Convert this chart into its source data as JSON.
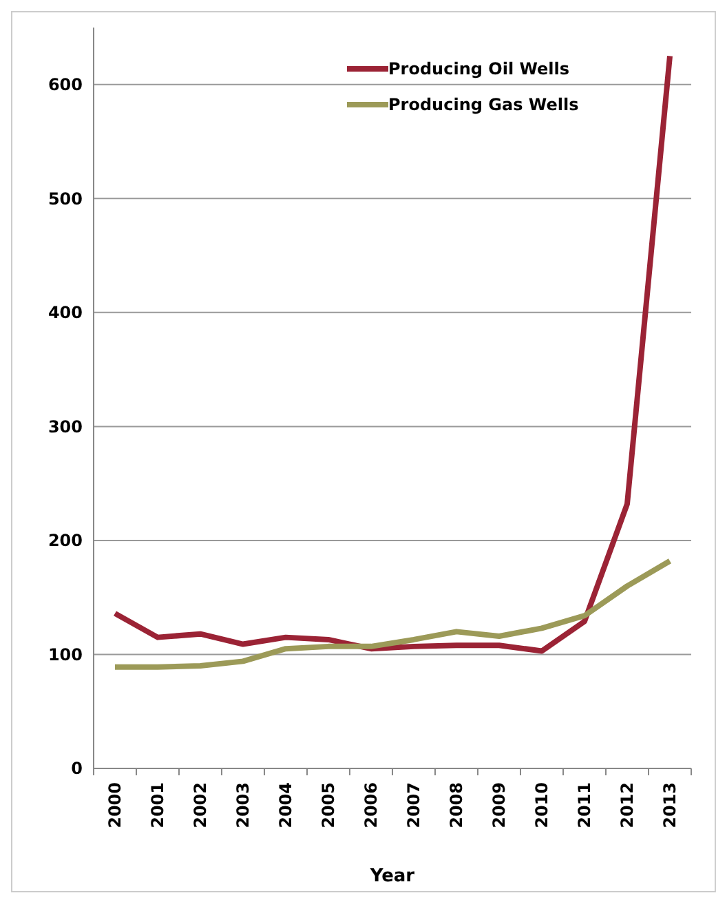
{
  "chart_data": {
    "type": "line",
    "xlabel": "Year",
    "categories": [
      "2000",
      "2001",
      "2002",
      "2003",
      "2004",
      "2005",
      "2006",
      "2007",
      "2008",
      "2009",
      "2010",
      "2011",
      "2012",
      "2013"
    ],
    "series": [
      {
        "name": "Producing Oil Wells",
        "color": "#9b2335",
        "values": [
          136,
          115,
          118,
          109,
          115,
          113,
          105,
          107,
          108,
          108,
          103,
          129,
          232,
          625
        ]
      },
      {
        "name": "Producing Gas Wells",
        "color": "#9c9a58",
        "values": [
          89,
          89,
          90,
          94,
          105,
          107,
          107,
          113,
          120,
          116,
          123,
          134,
          160,
          182
        ]
      }
    ],
    "ylim": [
      0,
      650
    ],
    "yticks": [
      0,
      100,
      200,
      300,
      400,
      500,
      600
    ],
    "grid": "y",
    "legend": "top right",
    "marker": "none",
    "line_style": "solid"
  }
}
